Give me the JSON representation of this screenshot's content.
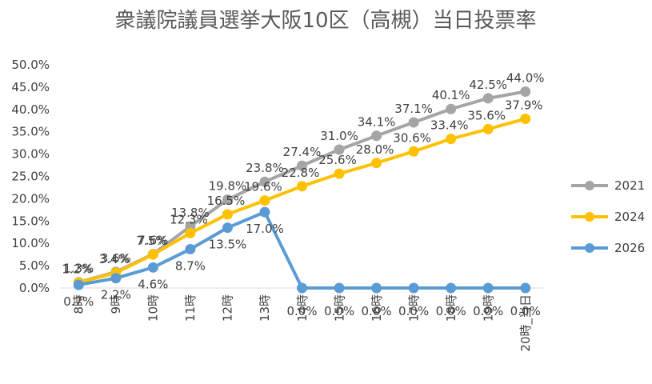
{
  "chart_data": {
    "type": "line",
    "title": "衆議院議員選挙大阪10区（高槻）当日投票率",
    "categories": [
      "8時",
      "9時",
      "10時",
      "11時",
      "12時",
      "13時",
      "14時",
      "15時",
      "16時",
      "17時",
      "18時",
      "19時",
      "20時_当日"
    ],
    "ylim": [
      0,
      50
    ],
    "yticks": [
      "0.0%",
      "5.0%",
      "10.0%",
      "15.0%",
      "20.0%",
      "25.0%",
      "30.0%",
      "35.0%",
      "40.0%",
      "45.0%",
      "50.0%"
    ],
    "grid": false,
    "legend_position": "right",
    "series": [
      {
        "name": "2021",
        "color": "#a5a5a5",
        "values": [
          1.3,
          3.6,
          7.6,
          13.8,
          19.8,
          23.8,
          27.4,
          31.0,
          34.1,
          37.1,
          40.1,
          42.5,
          44.0
        ],
        "labels": [
          "1.3%",
          "3.6%",
          "7.6%",
          "13.8%",
          "19.8%",
          "23.8%",
          "27.4%",
          "31.0%",
          "34.1%",
          "37.1%",
          "40.1%",
          "42.5%",
          "44.0%"
        ]
      },
      {
        "name": "2024",
        "color": "#ffc000",
        "values": [
          1.2,
          3.4,
          7.5,
          12.3,
          16.5,
          19.6,
          22.8,
          25.6,
          28.0,
          30.6,
          33.4,
          35.6,
          37.9
        ],
        "labels": [
          "1.2%",
          "3.4%",
          "7.5%",
          "12.3%",
          "16.5%",
          "19.6%",
          "22.8%",
          "25.6%",
          "28.0%",
          "30.6%",
          "33.4%",
          "35.6%",
          "37.9%"
        ]
      },
      {
        "name": "2026",
        "color": "#5b9bd5",
        "values": [
          0.7,
          2.2,
          4.6,
          8.7,
          13.5,
          17.0,
          0.0,
          0.0,
          0.0,
          0.0,
          0.0,
          0.0,
          0.0
        ],
        "labels": [
          "0.7%",
          "2.2%",
          "4.6%",
          "8.7%",
          "13.5%",
          "17.0%",
          "0.0%",
          "0.0%",
          "0.0%",
          "0.0%",
          "0.0%",
          "0.0%",
          "0.0%"
        ]
      }
    ]
  }
}
